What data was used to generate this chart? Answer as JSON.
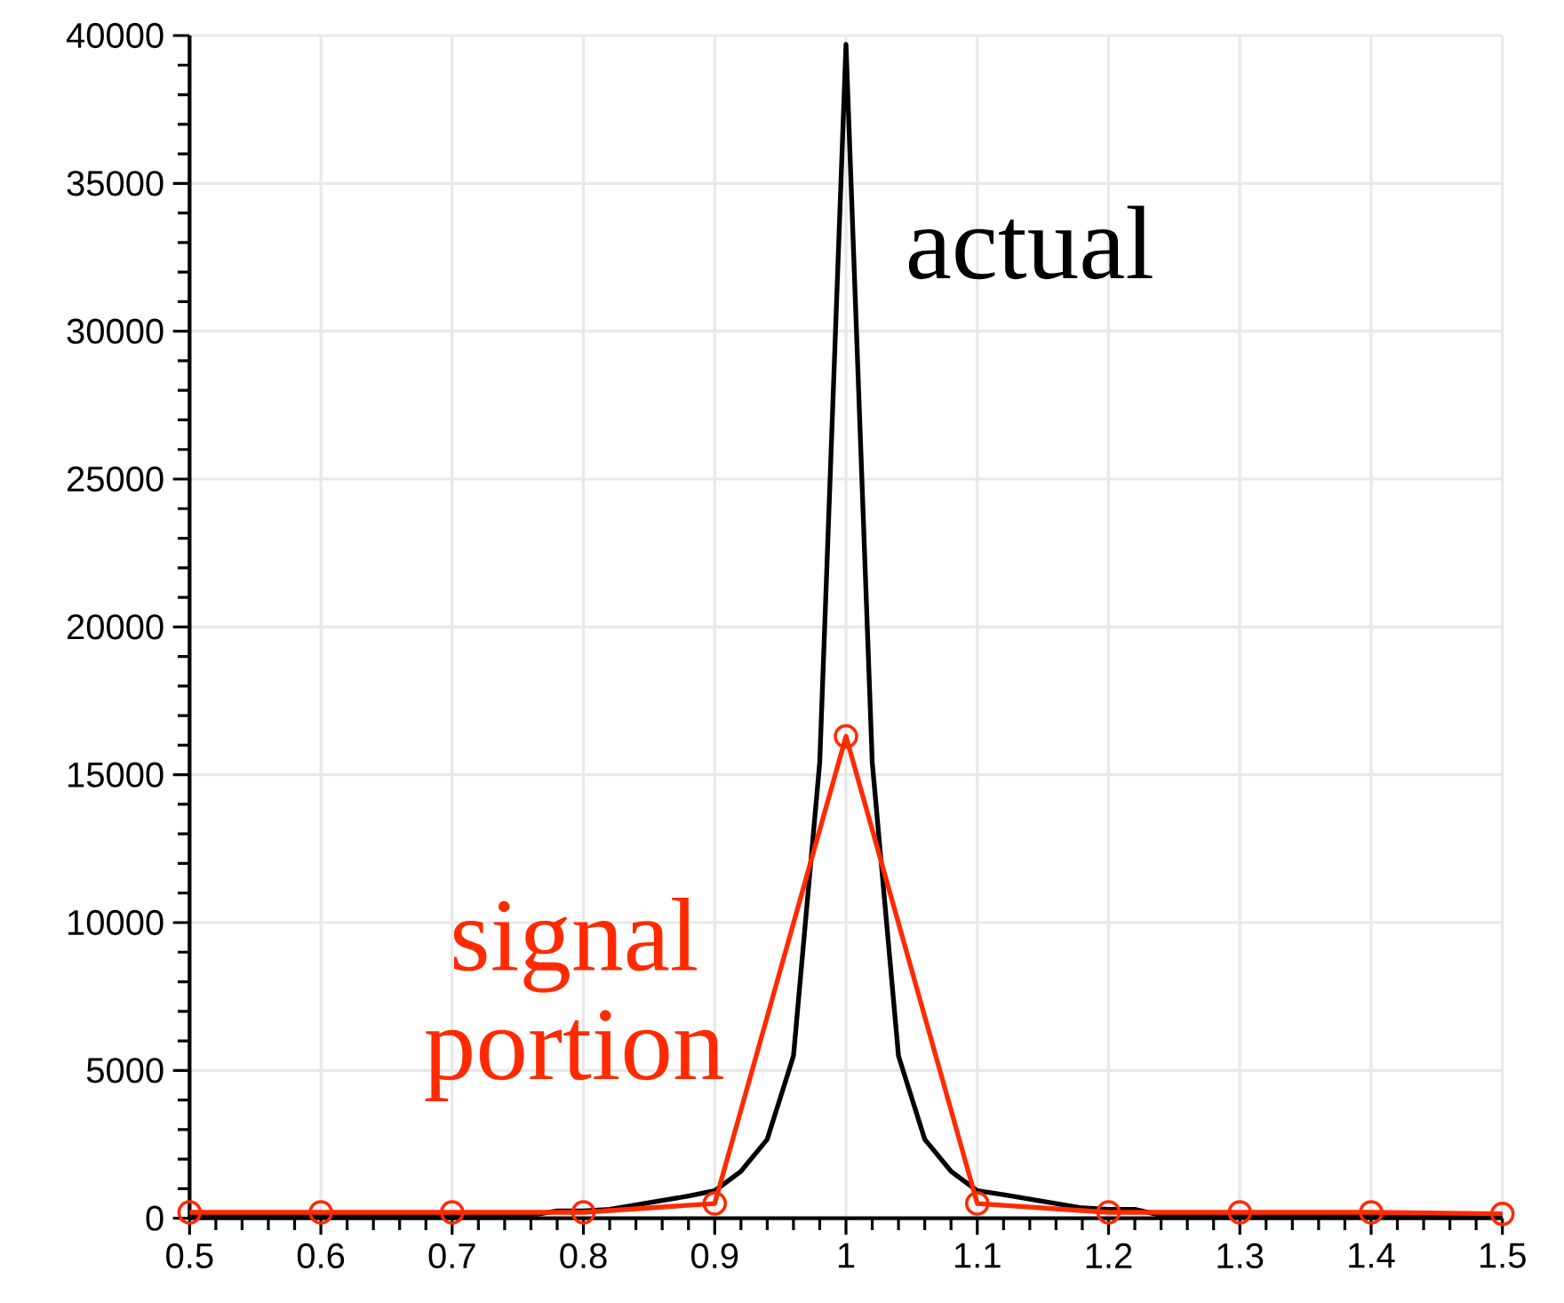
{
  "chart_data": {
    "type": "line",
    "xlim": [
      0.5,
      1.5
    ],
    "ylim": [
      0,
      40000
    ],
    "xticks": [
      0.5,
      0.6,
      0.7,
      0.8,
      0.9,
      1,
      1.1,
      1.2,
      1.3,
      1.4,
      1.5
    ],
    "yticks": [
      0,
      5000,
      10000,
      15000,
      20000,
      25000,
      30000,
      35000,
      40000
    ],
    "grid": true,
    "legend": false,
    "series": [
      {
        "name": "actual",
        "color": "#000000",
        "marker": "none",
        "x": [
          0.5,
          0.56,
          0.62,
          0.68,
          0.74,
          0.76,
          0.78,
          0.8,
          0.82,
          0.84,
          0.86,
          0.88,
          0.9,
          0.92,
          0.94,
          0.96,
          0.98,
          1.0,
          1.02,
          1.04,
          1.06,
          1.08,
          1.1,
          1.12,
          1.14,
          1.16,
          1.18,
          1.2,
          1.22,
          1.24,
          1.3,
          1.4,
          1.5
        ],
        "values": [
          100,
          100,
          100,
          100,
          100,
          100,
          250,
          250,
          300,
          450,
          600,
          750,
          930,
          1590,
          2670,
          5490,
          15420,
          39700,
          15420,
          5490,
          2670,
          1590,
          930,
          800,
          650,
          500,
          350,
          300,
          300,
          100,
          100,
          100,
          100
        ]
      },
      {
        "name": "signal portion",
        "color": "#ff2a00",
        "marker": "circle",
        "x": [
          0.5,
          0.6,
          0.7,
          0.8,
          0.9,
          1.0,
          1.1,
          1.2,
          1.3,
          1.4,
          1.5
        ],
        "values": [
          200,
          200,
          200,
          200,
          500,
          16300,
          500,
          200,
          200,
          200,
          150
        ]
      }
    ]
  }
}
